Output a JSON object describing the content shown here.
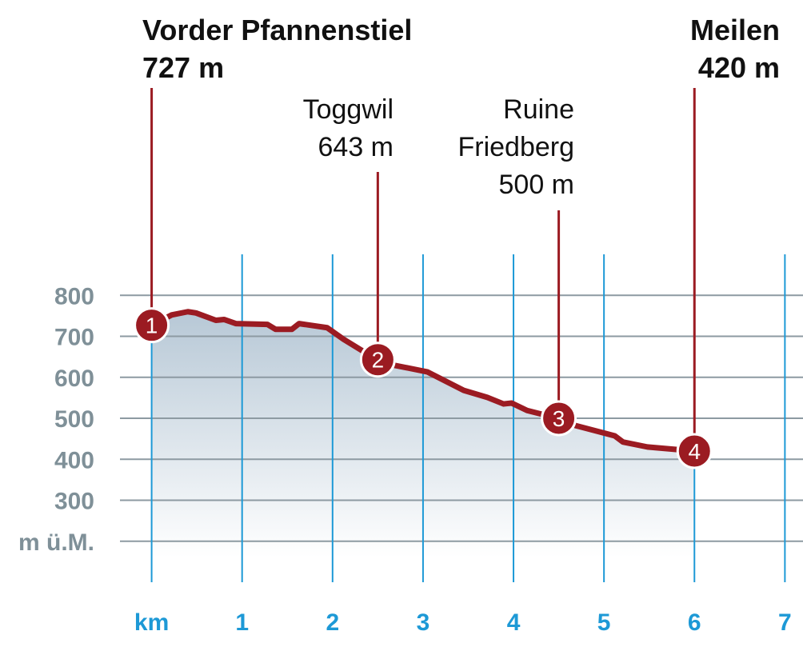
{
  "chart_data": {
    "type": "line",
    "color": "#9b1b22",
    "fill_color": "#b7c8d6",
    "x": [
      0,
      0.22,
      0.4,
      0.49,
      0.71,
      0.8,
      0.93,
      1.28,
      1.37,
      1.55,
      1.63,
      1.94,
      2.12,
      2.49,
      2.69,
      3.05,
      3.45,
      3.71,
      3.89,
      3.98,
      4.15,
      4.49,
      4.69,
      5.12,
      5.21,
      5.48,
      6.0
    ],
    "values": [
      727,
      752,
      760,
      757,
      739,
      741,
      731,
      729,
      717,
      717,
      731,
      721,
      693,
      643,
      629,
      613,
      568,
      551,
      535,
      537,
      519,
      500,
      482,
      457,
      442,
      430,
      420
    ],
    "xlim": [
      -0.35,
      7.2
    ],
    "xticks": [
      {
        "value": 0,
        "label": "km"
      },
      1,
      2,
      3,
      4,
      5,
      6,
      7
    ],
    "ylim": [
      100,
      900
    ],
    "yticks": [
      {
        "value": 200,
        "label": "m ü.M."
      },
      300,
      400,
      500,
      600,
      700,
      800
    ],
    "grid": true,
    "markers": {
      "labels": [
        "1",
        "2",
        "3",
        "4"
      ],
      "names": [
        [
          "Vorder Pfannenstiel"
        ],
        [
          "Toggwil"
        ],
        [
          "Ruine",
          "Friedberg"
        ],
        [
          "Meilen"
        ]
      ],
      "x": [
        0,
        2.5,
        4.5,
        6.0
      ],
      "values": [
        727,
        643,
        500,
        420
      ],
      "value_labels": [
        "727 m",
        "643 m",
        "500 m",
        "420 m"
      ]
    }
  }
}
